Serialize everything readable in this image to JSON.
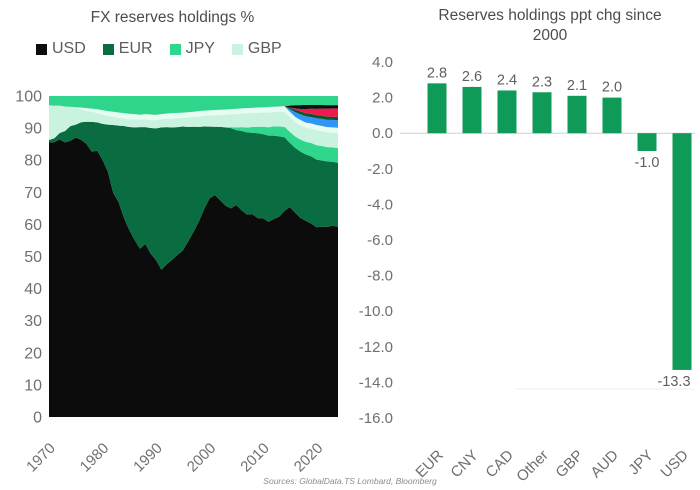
{
  "source_note": "Sources: GlobalData.TS Lombard, Bloomberg",
  "chart_data": [
    {
      "type": "area",
      "title": "FX reserves holdings %",
      "xlabel": "",
      "ylabel": "",
      "ylim": [
        0,
        100
      ],
      "y_ticks": [
        0,
        10,
        20,
        30,
        40,
        50,
        60,
        70,
        80,
        90,
        100
      ],
      "x_ticks": [
        1970,
        1980,
        1990,
        2000,
        2010,
        2020
      ],
      "legend_position": "top",
      "grid": false,
      "note": "Stacked area, shares normalized to 100%. Thin unlabeled stripes (blue, dark green, red, black) appear near the top after ~2015.",
      "legend": [
        {
          "label": "USD",
          "color": "#0c0c0c"
        },
        {
          "label": "EUR",
          "color": "#0a6c41"
        },
        {
          "label": "JPY",
          "color": "#30d68c"
        },
        {
          "label": "GBP",
          "color": "#c9f3de"
        }
      ],
      "years": [
        1970,
        1971,
        1972,
        1973,
        1974,
        1975,
        1976,
        1977,
        1978,
        1979,
        1980,
        1981,
        1982,
        1983,
        1984,
        1985,
        1986,
        1987,
        1988,
        1989,
        1990,
        1991,
        1992,
        1993,
        1994,
        1995,
        1996,
        1997,
        1998,
        1999,
        2000,
        2001,
        2002,
        2003,
        2004,
        2005,
        2006,
        2007,
        2008,
        2009,
        2010,
        2011,
        2012,
        2013,
        2014,
        2015,
        2016,
        2017,
        2018,
        2019,
        2020,
        2021,
        2022,
        2023,
        2024
      ],
      "series": [
        {
          "name": "USD",
          "color": "#0c0c0c",
          "values": [
            85.5,
            84.6,
            86.2,
            84.0,
            85.3,
            86.0,
            86.8,
            85.9,
            84.2,
            84.8,
            82.0,
            78.0,
            71.0,
            67.5,
            63.0,
            59.0,
            56.5,
            54.0,
            55.5,
            52.0,
            50.0,
            47.0,
            49.0,
            50.5,
            52.0,
            53.0,
            56.0,
            59.0,
            62.0,
            65.5,
            68.5,
            70.0,
            68.0,
            66.0,
            65.0,
            66.5,
            65.0,
            64.0,
            63.5,
            62.0,
            61.5,
            60.0,
            60.5,
            61.0,
            63.0,
            65.5,
            64.5,
            63.0,
            62.0,
            60.5,
            59.0,
            59.0,
            58.0,
            58.5,
            58.0
          ]
        },
        {
          "name": "EUR",
          "color": "#0a6c41",
          "values": [
            0.8,
            1.2,
            2.0,
            3.5,
            4.5,
            4.0,
            5.5,
            7.0,
            9.5,
            9.0,
            11.5,
            15.0,
            21.5,
            24.0,
            29.0,
            32.5,
            36.0,
            39.0,
            37.5,
            40.0,
            42.0,
            45.5,
            44.0,
            42.5,
            41.0,
            39.5,
            36.5,
            33.5,
            30.0,
            26.0,
            22.5,
            21.5,
            23.0,
            24.5,
            25.0,
            23.5,
            25.0,
            26.0,
            25.5,
            26.5,
            26.0,
            26.5,
            25.5,
            24.5,
            22.5,
            20.0,
            20.5,
            21.0,
            21.0,
            21.0,
            21.0,
            20.5,
            20.0,
            19.5,
            19.5
          ]
        },
        {
          "name": "JPY",
          "color": "#30d68c",
          "values": [
            0,
            0,
            0,
            0,
            0,
            0,
            0,
            0,
            0,
            0,
            0,
            0,
            0,
            0,
            0,
            0,
            0,
            0,
            0,
            0,
            0,
            0,
            0,
            0,
            0,
            0,
            0,
            0,
            0,
            0,
            0,
            0,
            0,
            0,
            0.3,
            0.8,
            1.2,
            1.5,
            1.8,
            2.0,
            2.3,
            2.6,
            2.8,
            3.0,
            3.2,
            3.4,
            3.6,
            3.8,
            4.0,
            4.2,
            4.5,
            4.5,
            4.4,
            4.4,
            4.5
          ]
        },
        {
          "name": "GBP",
          "color": "#c9f3de",
          "values": [
            10.8,
            10.0,
            8.5,
            7.5,
            6.0,
            5.0,
            4.0,
            3.5,
            3.2,
            3.0,
            3.0,
            2.8,
            2.6,
            2.5,
            2.4,
            2.4,
            2.5,
            2.4,
            2.5,
            2.5,
            2.6,
            2.6,
            2.7,
            2.8,
            2.9,
            2.8,
            3.0,
            3.2,
            3.3,
            3.4,
            3.5,
            3.6,
            3.8,
            3.9,
            4.0,
            4.2,
            4.3,
            4.5,
            4.4,
            4.3,
            4.4,
            4.5,
            4.4,
            4.5,
            4.6,
            4.7,
            4.6,
            4.5,
            4.5,
            4.5,
            4.6,
            4.6,
            4.5,
            4.5,
            4.6
          ]
        },
        {
          "name": "Other-light",
          "color": "#e6fbf2",
          "values": [
            0,
            0,
            0,
            0,
            0,
            0.3,
            0.6,
            0.8,
            1.0,
            1.2,
            1.4,
            1.5,
            1.6,
            1.6,
            1.7,
            1.8,
            1.7,
            1.6,
            1.7,
            1.8,
            1.7,
            1.6,
            1.7,
            1.8,
            1.7,
            1.6,
            1.7,
            1.6,
            1.7,
            1.6,
            1.6,
            1.7,
            1.6,
            1.7,
            1.6,
            1.7,
            1.6,
            1.7,
            1.6,
            1.7,
            1.6,
            1.7,
            1.6,
            1.6,
            1.7,
            1.6,
            1.6,
            1.7,
            1.6,
            1.6,
            1.7,
            1.6,
            1.6,
            1.6,
            1.6
          ]
        },
        {
          "name": "CAD",
          "color": "#2e96f5",
          "values": [
            0,
            0,
            0,
            0,
            0,
            0,
            0,
            0,
            0,
            0,
            0,
            0,
            0,
            0,
            0,
            0,
            0,
            0,
            0,
            0,
            0,
            0,
            0,
            0,
            0,
            0,
            0,
            0,
            0,
            0,
            0,
            0,
            0,
            0,
            0,
            0,
            0,
            0,
            0,
            0,
            0,
            0,
            0,
            0,
            0,
            0.8,
            1.5,
            1.8,
            2.0,
            2.0,
            2.1,
            2.2,
            2.2,
            2.3,
            2.3
          ]
        },
        {
          "name": "AUD",
          "color": "#105132",
          "values": [
            0,
            0,
            0,
            0,
            0,
            0,
            0,
            0,
            0,
            0,
            0,
            0,
            0,
            0,
            0,
            0,
            0,
            0,
            0,
            0,
            0,
            0,
            0,
            0,
            0,
            0,
            0,
            0,
            0,
            0,
            0,
            0,
            0,
            0,
            0,
            0,
            0,
            0,
            0,
            0,
            0,
            0,
            0,
            0,
            0,
            0.5,
            0.8,
            0.9,
            1.0,
            1.0,
            1.0,
            1.0,
            1.0,
            1.0,
            1.0
          ]
        },
        {
          "name": "CNY",
          "color": "#ee1a4d",
          "values": [
            0,
            0,
            0,
            0,
            0,
            0,
            0,
            0,
            0,
            0,
            0,
            0,
            0,
            0,
            0,
            0,
            0,
            0,
            0,
            0,
            0,
            0,
            0,
            0,
            0,
            0,
            0,
            0,
            0,
            0,
            0,
            0,
            0,
            0,
            0,
            0,
            0,
            0,
            0,
            0,
            0,
            0,
            0,
            0,
            0,
            0,
            0.4,
            0.8,
            1.3,
            1.6,
            1.9,
            2.2,
            2.4,
            2.5,
            2.6
          ]
        },
        {
          "name": "Other-dark",
          "color": "#101010",
          "values": [
            0,
            0,
            0,
            0,
            0,
            0,
            0,
            0,
            0,
            0,
            0,
            0,
            0,
            0,
            0,
            0,
            0,
            0,
            0,
            0,
            0,
            0,
            0,
            0,
            0,
            0,
            0,
            0,
            0,
            0,
            0,
            0,
            0,
            0,
            0,
            0,
            0,
            0,
            0,
            0,
            0,
            0,
            0,
            0,
            0,
            0.6,
            1.0,
            1.2,
            1.3,
            1.2,
            1.2,
            1.1,
            1.1,
            1.0,
            1.0
          ]
        },
        {
          "name": "Other-green",
          "color": "#2fd58a",
          "values": [
            2.9,
            3.0,
            3.0,
            3.2,
            3.3,
            3.5,
            3.6,
            3.8,
            4.0,
            4.2,
            4.5,
            4.8,
            5.0,
            5.2,
            5.4,
            5.6,
            5.8,
            6.0,
            5.8,
            5.9,
            6.0,
            5.8,
            5.6,
            5.5,
            5.4,
            5.3,
            5.2,
            5.0,
            4.8,
            4.6,
            4.5,
            4.4,
            4.3,
            4.2,
            4.1,
            4.0,
            3.9,
            3.8,
            3.7,
            3.6,
            3.5,
            3.4,
            3.3,
            3.2,
            3.1,
            3.0,
            2.9,
            2.9,
            2.8,
            2.8,
            2.8,
            2.8,
            2.8,
            2.8,
            2.8
          ]
        }
      ]
    },
    {
      "type": "bar",
      "title": "Reserves holdings ppt chg since 2000",
      "xlabel": "",
      "ylabel": "",
      "ylim": [
        -16,
        4
      ],
      "y_ticks": [
        4.0,
        2.0,
        0.0,
        -2.0,
        -4.0,
        -6.0,
        -8.0,
        -10.0,
        -12.0,
        -14.0,
        -16.0
      ],
      "grid": false,
      "legend_position": "none",
      "bar_color": "#0f9b57",
      "categories": [
        "EUR",
        "CNY",
        "CAD",
        "Other",
        "GBP",
        "AUD",
        "JPY",
        "USD"
      ],
      "values": [
        2.8,
        2.6,
        2.4,
        2.3,
        2.1,
        2.0,
        -1.0,
        -13.3
      ],
      "value_labels": [
        "2.8",
        "2.6",
        "2.4",
        "2.3",
        "2.1",
        "2.0",
        "-1.0",
        "-13.3"
      ]
    }
  ]
}
